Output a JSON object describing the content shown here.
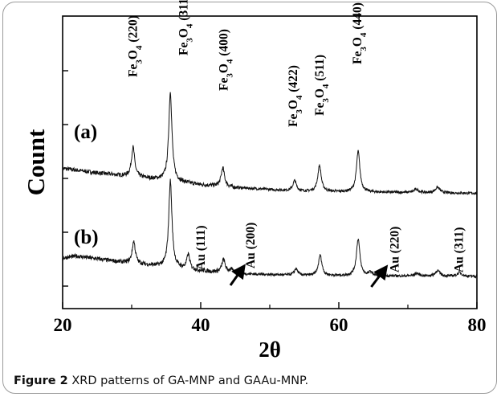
{
  "figure": {
    "caption_label": "Figure 2",
    "caption_text": "XRD patterns of GA-MNP and GAAu-MNP."
  },
  "chart_data": {
    "type": "line",
    "xlabel": "2θ",
    "ylabel": "Count",
    "xlim": [
      20,
      80
    ],
    "xticks": [
      20,
      40,
      60,
      80
    ],
    "yticks_shown": false,
    "colors": {
      "line": "#111111",
      "text": "#000000"
    },
    "series": [
      {
        "name": "(a)",
        "baseline_shift": 0.45,
        "noise": 0.014,
        "background": [
          [
            20,
            0.135
          ],
          [
            25,
            0.11
          ],
          [
            30,
            0.09
          ],
          [
            35,
            0.07
          ],
          [
            40,
            0.045
          ],
          [
            45,
            0.03
          ],
          [
            55,
            0.01
          ],
          [
            80,
            0.0
          ]
        ],
        "peaks": [
          {
            "x": 30.2,
            "h": 0.16,
            "w": 0.28
          },
          {
            "x": 35.6,
            "h": 0.48,
            "w": 0.28
          },
          {
            "x": 43.2,
            "h": 0.1,
            "w": 0.3
          },
          {
            "x": 53.6,
            "h": 0.055,
            "w": 0.3
          },
          {
            "x": 57.2,
            "h": 0.14,
            "w": 0.3
          },
          {
            "x": 62.8,
            "h": 0.22,
            "w": 0.3
          },
          {
            "x": 71.2,
            "h": 0.018,
            "w": 0.4
          },
          {
            "x": 74.3,
            "h": 0.03,
            "w": 0.4
          }
        ]
      },
      {
        "name": "(b)",
        "baseline_shift": 0.0,
        "noise": 0.014,
        "background": [
          [
            20,
            0.1
          ],
          [
            22,
            0.11
          ],
          [
            25,
            0.095
          ],
          [
            30,
            0.07
          ],
          [
            35,
            0.05
          ],
          [
            40,
            0.03
          ],
          [
            45,
            0.015
          ],
          [
            55,
            0.005
          ],
          [
            80,
            0.0
          ]
        ],
        "peaks": [
          {
            "x": 30.3,
            "h": 0.12,
            "w": 0.28
          },
          {
            "x": 35.6,
            "h": 0.47,
            "w": 0.28
          },
          {
            "x": 38.2,
            "h": 0.08,
            "w": 0.26
          },
          {
            "x": 43.3,
            "h": 0.07,
            "w": 0.3
          },
          {
            "x": 44.4,
            "h": 0.02,
            "w": 0.3
          },
          {
            "x": 53.8,
            "h": 0.035,
            "w": 0.3
          },
          {
            "x": 57.3,
            "h": 0.11,
            "w": 0.3
          },
          {
            "x": 62.8,
            "h": 0.2,
            "w": 0.3
          },
          {
            "x": 64.6,
            "h": 0.02,
            "w": 0.3
          },
          {
            "x": 71.3,
            "h": 0.015,
            "w": 0.4
          },
          {
            "x": 74.3,
            "h": 0.03,
            "w": 0.4
          },
          {
            "x": 77.5,
            "h": 0.02,
            "w": 0.4
          }
        ]
      }
    ],
    "peak_labels_a": [
      {
        "compound": "Fe",
        "sub": "3",
        "suffix": "O",
        "sub2": "4",
        "hkl": "(220)",
        "x": 30.2
      },
      {
        "compound": "Fe",
        "sub": "3",
        "suffix": "O",
        "sub2": "4",
        "hkl": "(311)",
        "x": 37.5
      },
      {
        "compound": "Fe",
        "sub": "3",
        "suffix": "O",
        "sub2": "4",
        "hkl": "(400)",
        "x": 43.3
      },
      {
        "compound": "Fe",
        "sub": "3",
        "suffix": "O",
        "sub2": "4",
        "hkl": "(422)",
        "x": 53.4
      },
      {
        "compound": "Fe",
        "sub": "3",
        "suffix": "O",
        "sub2": "4",
        "hkl": "(511)",
        "x": 57.2
      },
      {
        "compound": "Fe",
        "sub": "3",
        "suffix": "O",
        "sub2": "4",
        "hkl": "(440)",
        "x": 62.7
      }
    ],
    "peak_labels_b": [
      {
        "text": "Au (111)",
        "x": 40.0
      },
      {
        "text": "Au (200)",
        "x": 47.2
      },
      {
        "text": "Au (220)",
        "x": 68.1
      },
      {
        "text": "Au (311)",
        "x": 77.4
      }
    ]
  }
}
